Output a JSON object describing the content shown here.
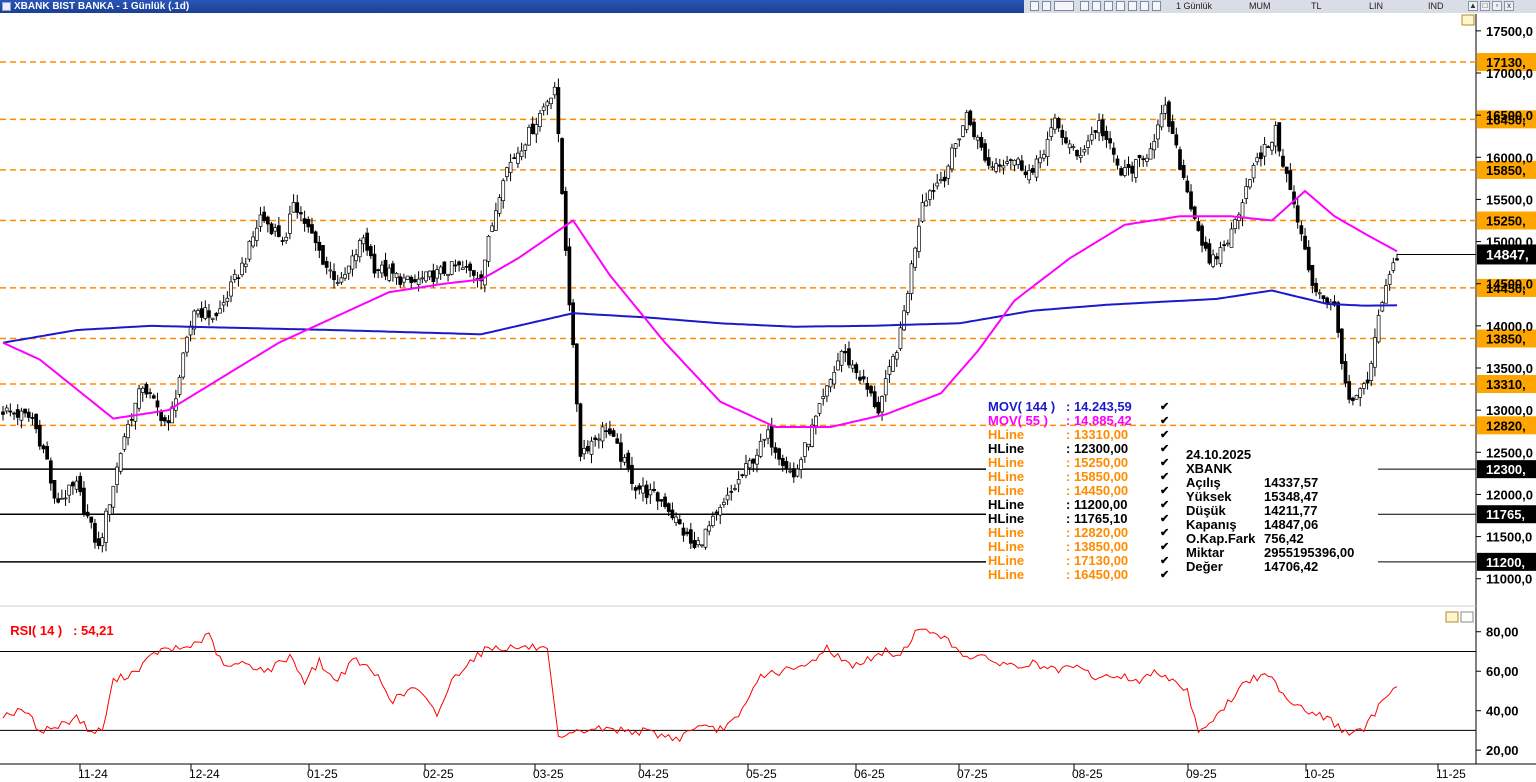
{
  "window": {
    "title": "XBANK BIST BANKA - 1 Günlük (.1d)",
    "toolbar": {
      "period": "1 Günlük",
      "chart_style": "MUM",
      "currency": "TL",
      "scale": "LIN",
      "indicator": "IND"
    }
  },
  "colors": {
    "mov144": "#1a1acc",
    "mov55": "#ff00ff",
    "hline_orange": "#ff8c00",
    "hline_black": "#000000",
    "rsi": "#ff0000",
    "price_badge": "#000000",
    "orange_badge": "#ffa500"
  },
  "legend": [
    {
      "name": "MOV( 144 )",
      "value": ": 14.243,59",
      "color": "#1a1acc"
    },
    {
      "name": "MOV( 55 )",
      "value": ": 14.885,42",
      "color": "#ff00ff"
    },
    {
      "name": "HLine",
      "value": ": 13310,00",
      "color": "#ff8c00"
    },
    {
      "name": "HLine",
      "value": ": 12300,00",
      "color": "#000000"
    },
    {
      "name": "HLine",
      "value": ": 15250,00",
      "color": "#ff8c00"
    },
    {
      "name": "HLine",
      "value": ": 15850,00",
      "color": "#ff8c00"
    },
    {
      "name": "HLine",
      "value": ": 14450,00",
      "color": "#ff8c00"
    },
    {
      "name": "HLine",
      "value": ": 11200,00",
      "color": "#000000"
    },
    {
      "name": "HLine",
      "value": ": 11765,10",
      "color": "#000000"
    },
    {
      "name": "HLine",
      "value": ": 12820,00",
      "color": "#ff8c00"
    },
    {
      "name": "HLine",
      "value": ": 13850,00",
      "color": "#ff8c00"
    },
    {
      "name": "HLine",
      "value": ": 17130,00",
      "color": "#ff8c00"
    },
    {
      "name": "HLine",
      "value": ": 16450,00",
      "color": "#ff8c00"
    }
  ],
  "info": {
    "date": "24.10.2025",
    "symbol": "XBANK",
    "rows": [
      {
        "label": "Açılış",
        "value": "14337,57"
      },
      {
        "label": "Yüksek",
        "value": "15348,47"
      },
      {
        "label": "Düşük",
        "value": "14211,77"
      },
      {
        "label": "Kapanış",
        "value": "14847,06"
      },
      {
        "label": "O.Kap.Fark",
        "value": "756,42"
      },
      {
        "label": "Miktar",
        "value": "2955195396,00"
      },
      {
        "label": "Değer",
        "value": "14706,42"
      }
    ]
  },
  "chart_data": [
    {
      "type": "candlestick",
      "title": "XBANK BIST BANKA - 1 Günlük (.1d)",
      "ylim": [
        10700,
        17700
      ],
      "y_ticks": [
        "17500,0",
        "17000,0",
        "16500,0",
        "16000,0",
        "15500,0",
        "15000,0",
        "14500,0",
        "14000,0",
        "13500,0",
        "13000,0",
        "12500,0",
        "12000,0",
        "11500,0",
        "11000,0"
      ],
      "x_ticks": [
        "11-24",
        "12-24",
        "01-25",
        "02-25",
        "03-25",
        "04-25",
        "05-25",
        "06-25",
        "07-25",
        "08-25",
        "09-25",
        "10-25",
        "11-25"
      ],
      "last_price_label": "14847,",
      "hlines": [
        {
          "value": 17130,
          "label": "17130,",
          "style": "orange"
        },
        {
          "value": 16450,
          "label": "16450,",
          "style": "orange"
        },
        {
          "value": 15850,
          "label": "15850,",
          "style": "orange"
        },
        {
          "value": 15250,
          "label": "15250,",
          "style": "orange"
        },
        {
          "value": 14450,
          "label": "14450,",
          "style": "orange"
        },
        {
          "value": 13850,
          "label": "13850,",
          "style": "orange"
        },
        {
          "value": 13310,
          "label": "13310,",
          "style": "orange"
        },
        {
          "value": 12820,
          "label": "12820,",
          "style": "orange"
        },
        {
          "value": 12300,
          "label": "12300,",
          "style": "black"
        },
        {
          "value": 11765.1,
          "label": "11765,",
          "style": "black"
        },
        {
          "value": 11200,
          "label": "11200,",
          "style": "black"
        }
      ],
      "close_anchors": [
        [
          0,
          13000
        ],
        [
          8,
          12900
        ],
        [
          12,
          12400
        ],
        [
          14,
          11900
        ],
        [
          20,
          12100
        ],
        [
          26,
          11350
        ],
        [
          33,
          12700
        ],
        [
          38,
          13300
        ],
        [
          45,
          12800
        ],
        [
          52,
          14200
        ],
        [
          58,
          14100
        ],
        [
          66,
          14800
        ],
        [
          70,
          15300
        ],
        [
          77,
          15000
        ],
        [
          79,
          15500
        ],
        [
          88,
          14700
        ],
        [
          92,
          14500
        ],
        [
          98,
          15050
        ],
        [
          101,
          14700
        ],
        [
          111,
          14500
        ],
        [
          123,
          14700
        ],
        [
          130,
          14600
        ],
        [
          136,
          15800
        ],
        [
          144,
          16350
        ],
        [
          150,
          16850
        ],
        [
          154,
          14300
        ],
        [
          157,
          12500
        ],
        [
          164,
          12800
        ],
        [
          172,
          12100
        ],
        [
          180,
          11900
        ],
        [
          188,
          11350
        ],
        [
          195,
          11800
        ],
        [
          202,
          12300
        ],
        [
          208,
          12700
        ],
        [
          215,
          12200
        ],
        [
          222,
          13000
        ],
        [
          228,
          13700
        ],
        [
          233,
          13400
        ],
        [
          238,
          13000
        ],
        [
          244,
          13900
        ],
        [
          250,
          15500
        ],
        [
          256,
          15800
        ],
        [
          262,
          16500
        ],
        [
          268,
          15900
        ],
        [
          274,
          16000
        ],
        [
          280,
          15800
        ],
        [
          286,
          16400
        ],
        [
          292,
          16000
        ],
        [
          298,
          16400
        ],
        [
          304,
          15800
        ],
        [
          310,
          15950
        ],
        [
          316,
          16550
        ],
        [
          322,
          15600
        ],
        [
          328,
          14700
        ],
        [
          334,
          15100
        ],
        [
          339,
          15800
        ],
        [
          346,
          16300
        ],
        [
          350,
          15600
        ],
        [
          356,
          14500
        ],
        [
          362,
          14200
        ],
        [
          366,
          13050
        ],
        [
          371,
          13300
        ],
        [
          375,
          14300
        ],
        [
          379,
          14847
        ]
      ],
      "mov144_anchors": [
        [
          0,
          13800
        ],
        [
          20,
          13950
        ],
        [
          40,
          14000
        ],
        [
          60,
          13980
        ],
        [
          90,
          13950
        ],
        [
          130,
          13900
        ],
        [
          155,
          14150
        ],
        [
          175,
          14100
        ],
        [
          195,
          14030
        ],
        [
          215,
          13990
        ],
        [
          235,
          14000
        ],
        [
          260,
          14030
        ],
        [
          280,
          14180
        ],
        [
          300,
          14250
        ],
        [
          330,
          14320
        ],
        [
          345,
          14420
        ],
        [
          360,
          14260
        ],
        [
          370,
          14240
        ],
        [
          379,
          14243.59
        ]
      ],
      "mov55_anchors": [
        [
          0,
          13800
        ],
        [
          10,
          13600
        ],
        [
          20,
          13250
        ],
        [
          30,
          12900
        ],
        [
          45,
          13000
        ],
        [
          60,
          13400
        ],
        [
          75,
          13800
        ],
        [
          90,
          14100
        ],
        [
          105,
          14400
        ],
        [
          120,
          14500
        ],
        [
          130,
          14550
        ],
        [
          140,
          14800
        ],
        [
          155,
          15250
        ],
        [
          165,
          14600
        ],
        [
          180,
          13800
        ],
        [
          195,
          13100
        ],
        [
          210,
          12800
        ],
        [
          225,
          12800
        ],
        [
          240,
          12950
        ],
        [
          255,
          13200
        ],
        [
          265,
          13700
        ],
        [
          275,
          14300
        ],
        [
          290,
          14800
        ],
        [
          305,
          15200
        ],
        [
          320,
          15300
        ],
        [
          334,
          15300
        ],
        [
          345,
          15250
        ],
        [
          354,
          15600
        ],
        [
          362,
          15300
        ],
        [
          370,
          15100
        ],
        [
          379,
          14885.42
        ]
      ]
    },
    {
      "type": "line",
      "title": "RSI( 14 )",
      "value_label": ": 54,21",
      "ylim": [
        14,
        90
      ],
      "y_ticks": [
        "80,00",
        "60,00",
        "40,00",
        "20,00"
      ],
      "hlines": [
        70,
        30
      ],
      "anchors": [
        [
          0,
          38
        ],
        [
          6,
          40
        ],
        [
          10,
          30
        ],
        [
          15,
          32
        ],
        [
          20,
          37
        ],
        [
          24,
          29
        ],
        [
          27,
          30
        ],
        [
          30,
          55
        ],
        [
          36,
          60
        ],
        [
          42,
          70
        ],
        [
          50,
          72
        ],
        [
          56,
          78
        ],
        [
          60,
          62
        ],
        [
          66,
          64
        ],
        [
          72,
          60
        ],
        [
          78,
          68
        ],
        [
          82,
          55
        ],
        [
          86,
          65
        ],
        [
          90,
          55
        ],
        [
          96,
          66
        ],
        [
          102,
          57
        ],
        [
          106,
          45
        ],
        [
          112,
          52
        ],
        [
          118,
          38
        ],
        [
          122,
          55
        ],
        [
          126,
          64
        ],
        [
          132,
          72
        ],
        [
          138,
          72
        ],
        [
          145,
          72
        ],
        [
          148,
          70
        ],
        [
          151,
          25
        ],
        [
          155,
          28
        ],
        [
          160,
          31
        ],
        [
          170,
          30
        ],
        [
          176,
          29
        ],
        [
          180,
          27
        ],
        [
          184,
          26
        ],
        [
          188,
          32
        ],
        [
          194,
          30
        ],
        [
          200,
          36
        ],
        [
          206,
          58
        ],
        [
          212,
          60
        ],
        [
          218,
          62
        ],
        [
          224,
          72
        ],
        [
          230,
          63
        ],
        [
          236,
          66
        ],
        [
          240,
          70
        ],
        [
          244,
          68
        ],
        [
          248,
          80
        ],
        [
          254,
          80
        ],
        [
          258,
          73
        ],
        [
          262,
          68
        ],
        [
          270,
          65
        ],
        [
          276,
          62
        ],
        [
          280,
          64
        ],
        [
          286,
          60
        ],
        [
          292,
          62
        ],
        [
          298,
          56
        ],
        [
          303,
          58
        ],
        [
          309,
          55
        ],
        [
          314,
          60
        ],
        [
          318,
          56
        ],
        [
          322,
          50
        ],
        [
          325,
          30
        ],
        [
          330,
          37
        ],
        [
          338,
          55
        ],
        [
          344,
          58
        ],
        [
          350,
          45
        ],
        [
          356,
          39
        ],
        [
          360,
          36
        ],
        [
          366,
          28
        ],
        [
          370,
          30
        ],
        [
          374,
          42
        ],
        [
          376,
          47
        ],
        [
          379,
          54.21
        ]
      ]
    }
  ]
}
